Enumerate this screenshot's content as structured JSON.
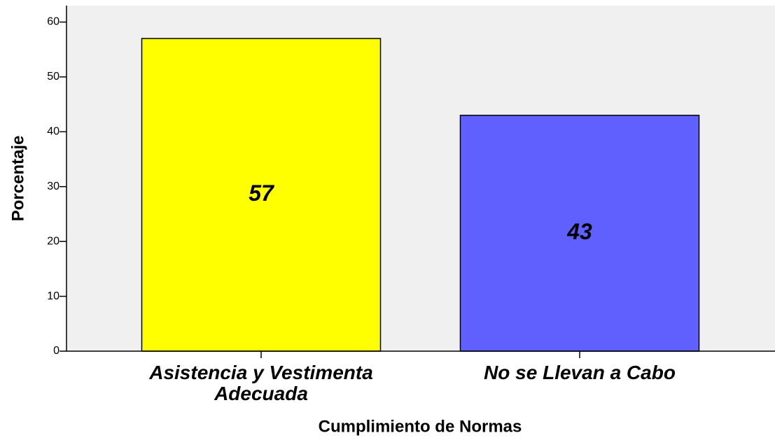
{
  "chart_data": {
    "type": "bar",
    "xlabel": "Cumplimiento de Normas",
    "ylabel": "Porcentaje",
    "categories": [
      "Asistencia y Vestimenta Adecuada",
      "No se Llevan a Cabo"
    ],
    "values": [
      57,
      43
    ],
    "colors": [
      "#ffff00",
      "#6060ff"
    ],
    "ylim": [
      0,
      63
    ],
    "yticks": [
      0,
      10,
      20,
      30,
      40,
      50,
      60
    ]
  }
}
